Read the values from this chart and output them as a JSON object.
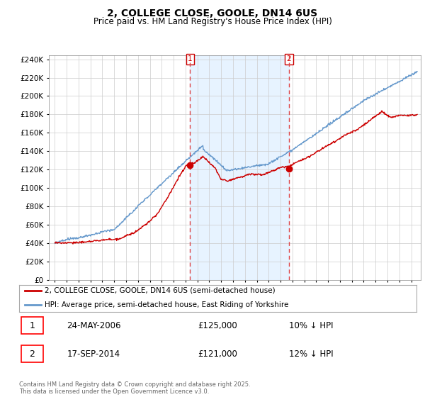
{
  "title": "2, COLLEGE CLOSE, GOOLE, DN14 6US",
  "subtitle": "Price paid vs. HM Land Registry's House Price Index (HPI)",
  "legend_line1": "2, COLLEGE CLOSE, GOOLE, DN14 6US (semi-detached house)",
  "legend_line2": "HPI: Average price, semi-detached house, East Riding of Yorkshire",
  "footer": "Contains HM Land Registry data © Crown copyright and database right 2025.\nThis data is licensed under the Open Government Licence v3.0.",
  "transaction1_date": "24-MAY-2006",
  "transaction1_price": "£125,000",
  "transaction1_hpi": "10% ↓ HPI",
  "transaction2_date": "17-SEP-2014",
  "transaction2_price": "£121,000",
  "transaction2_hpi": "12% ↓ HPI",
  "t1_year": 2006.39,
  "t2_year": 2014.71,
  "t1_price": 125000,
  "t2_price": 121000,
  "ylim": [
    0,
    244000
  ],
  "yticks": [
    0,
    20000,
    40000,
    60000,
    80000,
    100000,
    120000,
    140000,
    160000,
    180000,
    200000,
    220000,
    240000
  ],
  "xmin": 1994.5,
  "xmax": 2025.8,
  "color_property": "#cc0000",
  "color_hpi": "#6699cc",
  "color_shade": "#ddeeff",
  "color_vline": "#dd4444",
  "background_color": "#ffffff",
  "grid_color": "#cccccc"
}
